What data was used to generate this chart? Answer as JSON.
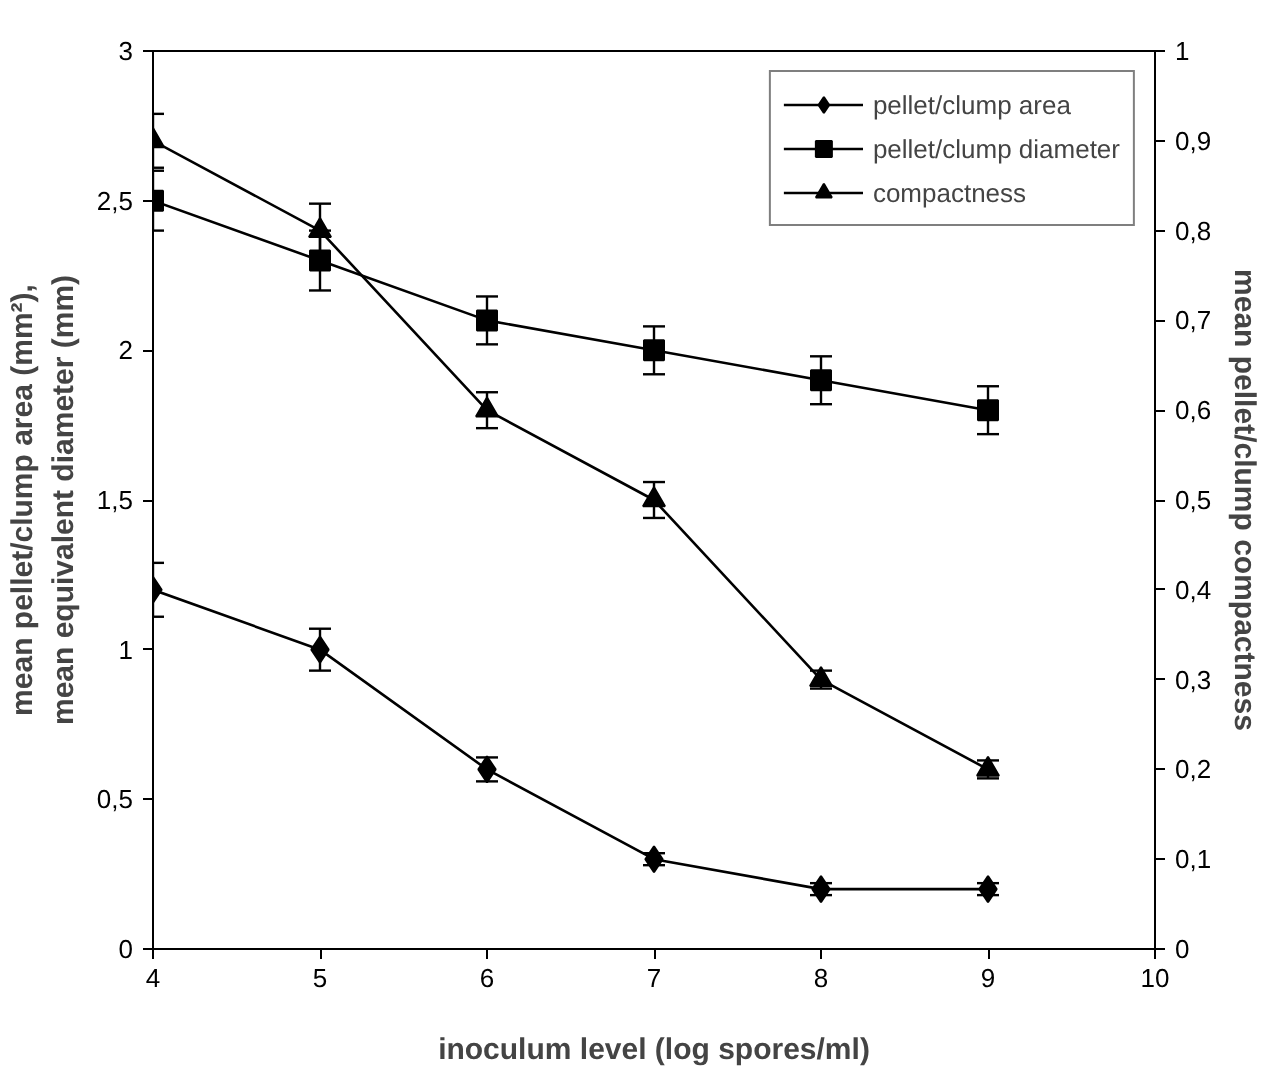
{
  "chart_data": {
    "type": "line",
    "xlabel": "inoculum level (log spores/ml)",
    "ylabel": "mean pellet/clump area (mm²),\nmean equivalent diameter (mm)",
    "y2label": "mean pellet/clump compactness",
    "x": [
      4,
      5,
      6,
      7,
      8,
      9
    ],
    "series": [
      {
        "name": "pellet/clump area",
        "color": "#000000",
        "marker": "diamond",
        "values": [
          1.2,
          1.0,
          0.6,
          0.3,
          0.2,
          0.2
        ],
        "errors": [
          0.09,
          0.07,
          0.04,
          0.02,
          0.02,
          0.02
        ]
      },
      {
        "name": "pellet/clump diameter",
        "color": "#000000",
        "marker": "square",
        "values": [
          2.5,
          2.3,
          2.1,
          2.0,
          1.9,
          1.8
        ],
        "errors": [
          0.1,
          0.1,
          0.08,
          0.08,
          0.08,
          0.08
        ]
      },
      {
        "name": "compactness",
        "color": "#000000",
        "marker": "triangle",
        "axis": "y2",
        "values": [
          0.9,
          0.8,
          0.6,
          0.5,
          0.3,
          0.2
        ],
        "errors": [
          0.03,
          0.03,
          0.02,
          0.02,
          0.01,
          0.01
        ]
      }
    ],
    "xlim": [
      4,
      10
    ],
    "xticks": [
      4,
      5,
      6,
      7,
      8,
      9,
      10
    ],
    "ylim": [
      0,
      3
    ],
    "yticks": [
      0,
      {
        "value": 0.5,
        "label": "0,5"
      },
      1,
      {
        "value": 1.5,
        "label": "1,5"
      },
      2,
      {
        "value": 2.5,
        "label": "2,5"
      },
      3
    ],
    "y2lim": [
      0,
      1
    ],
    "y2ticks": [
      0,
      {
        "value": 0.1,
        "label": "0,1"
      },
      {
        "value": 0.2,
        "label": "0,2"
      },
      {
        "value": 0.3,
        "label": "0,3"
      },
      {
        "value": 0.4,
        "label": "0,4"
      },
      {
        "value": 0.5,
        "label": "0,5"
      },
      {
        "value": 0.6,
        "label": "0,6"
      },
      {
        "value": 0.7,
        "label": "0,7"
      },
      {
        "value": 0.8,
        "label": "0,8"
      },
      {
        "value": 0.9,
        "label": "0,9"
      },
      1
    ],
    "grid": false,
    "legend": "top right",
    "line_style": "solid"
  }
}
